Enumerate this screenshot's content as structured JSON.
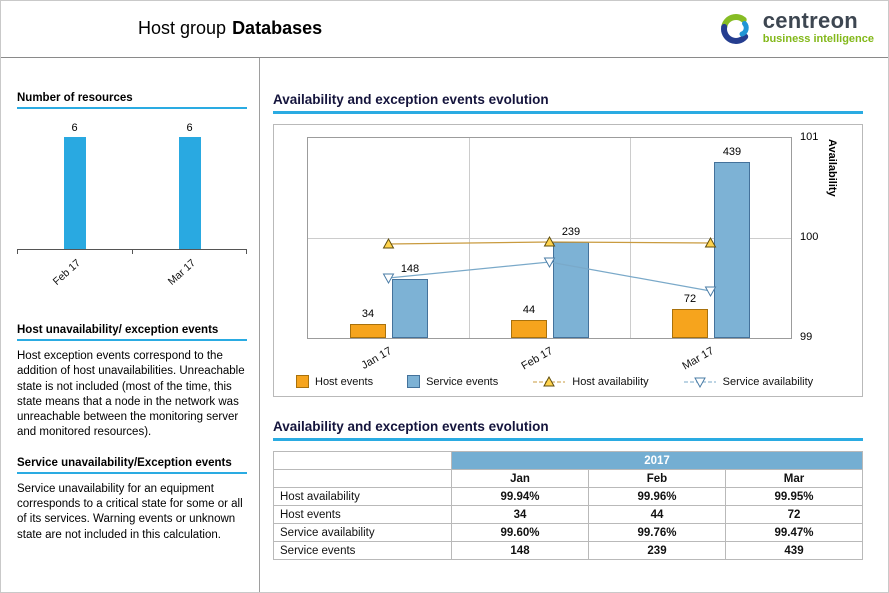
{
  "header": {
    "title_prefix": "Host group",
    "title_bold": "Databases",
    "logo": {
      "brand": "centreon",
      "tagline": "business intelligence"
    }
  },
  "sidebar": {
    "host_section": {
      "title": "Host unavailability/ exception events",
      "body": "Host exception events correspond to the addition of host unavailabilities. Unreachable state is not included (most of the time, this state means that a node in the network was unreachable between the monitoring server and monitored resources)."
    },
    "service_section": {
      "title": "Service unavailability/Exception events",
      "body": "Service unavailability for an equipment corresponds to a critical state for some or all of its services. Warning events or unknown state are not included in this calculation."
    }
  },
  "main": {
    "chart_title": "Availability and exception events evolution",
    "table_title": "Availability and exception events evolution"
  },
  "chart_data": [
    {
      "type": "bar",
      "title": "Number of resources",
      "categories": [
        "Feb 17",
        "Mar 17"
      ],
      "values": [
        6,
        6
      ],
      "bar_color": "#29a9e1"
    },
    {
      "type": "bar+line",
      "title": "Availability and exception events evolution",
      "categories": [
        "Jan 17",
        "Feb 17",
        "Mar 17"
      ],
      "series": [
        {
          "name": "Host events",
          "type": "bar",
          "values": [
            34,
            44,
            72
          ],
          "color": "#f6a41d",
          "border": "#a8710c"
        },
        {
          "name": "Service events",
          "type": "bar",
          "values": [
            148,
            239,
            439
          ],
          "color": "#7db2d5",
          "border": "#44729b"
        },
        {
          "name": "Host availability",
          "type": "line",
          "marker": "triangle-up",
          "values": [
            99.94,
            99.96,
            99.95
          ],
          "color": "#c99b3f",
          "marker_fill": "#ffd34d",
          "marker_stroke": "#5f4d0d"
        },
        {
          "name": "Service availability",
          "type": "line",
          "marker": "triangle-down",
          "values": [
            99.6,
            99.76,
            99.47
          ],
          "color": "#7aa9c9",
          "marker_fill": "#ffffff",
          "marker_stroke": "#4a7ca6"
        }
      ],
      "bar_axis_max": 500,
      "y2label": "Availability",
      "y2lim": [
        99,
        101
      ],
      "y2ticks": [
        99,
        100,
        101
      ],
      "legend_position": "bottom",
      "grid": true
    }
  ],
  "table": {
    "year": "2017",
    "columns": [
      "Jan",
      "Feb",
      "Mar"
    ],
    "rows": [
      {
        "label": "Host availability",
        "values": [
          "99.94%",
          "99.96%",
          "99.95%"
        ]
      },
      {
        "label": "Host events",
        "values": [
          "34",
          "44",
          "72"
        ]
      },
      {
        "label": "Service availability",
        "values": [
          "99.60%",
          "99.76%",
          "99.47%"
        ]
      },
      {
        "label": "Service events",
        "values": [
          "148",
          "239",
          "439"
        ]
      }
    ]
  },
  "colors": {
    "accent": "#2aabe2",
    "table_header": "#74aed2",
    "logo_green": "#83b81a",
    "logo_dark": "#3d4651",
    "sidebar_bar": "#29a9e1"
  }
}
